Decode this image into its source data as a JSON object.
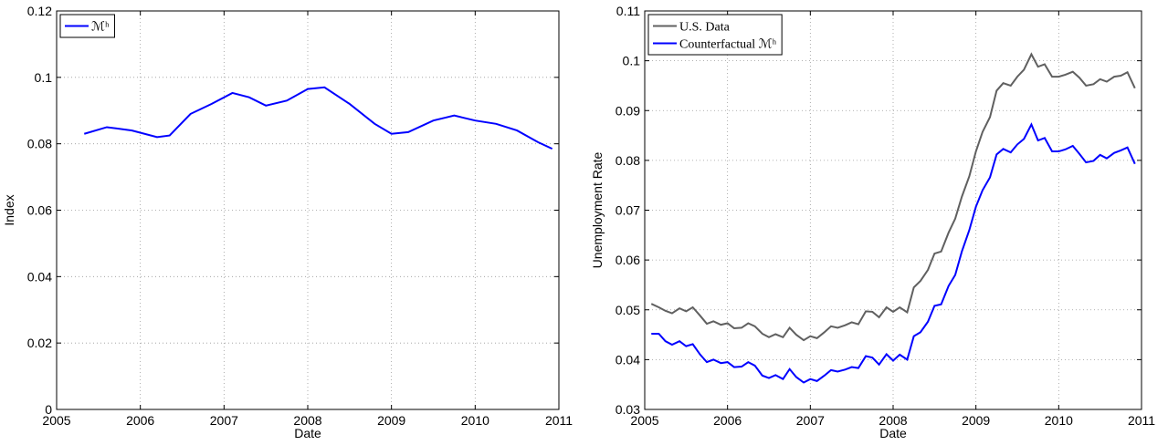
{
  "chart_data": [
    {
      "type": "line",
      "xlabel": "Date",
      "ylabel": "Index",
      "x": [
        2005.33,
        2005.6,
        2005.9,
        2006.2,
        2006.35,
        2006.6,
        2006.85,
        2007.1,
        2007.3,
        2007.5,
        2007.75,
        2008.0,
        2008.2,
        2008.5,
        2008.8,
        2009.0,
        2009.2,
        2009.5,
        2009.75,
        2010.0,
        2010.25,
        2010.5,
        2010.75,
        2010.92
      ],
      "series": [
        {
          "name": "ℳʰ",
          "color": "#0000ff",
          "values": [
            0.083,
            0.085,
            0.084,
            0.082,
            0.0825,
            0.089,
            0.092,
            0.0953,
            0.094,
            0.0915,
            0.093,
            0.0965,
            0.097,
            0.092,
            0.086,
            0.083,
            0.0835,
            0.087,
            0.0885,
            0.087,
            0.086,
            0.084,
            0.0805,
            0.0785
          ]
        }
      ],
      "xlim": [
        2005,
        2011
      ],
      "ylim": [
        0,
        0.12
      ],
      "xticks": [
        2005,
        2006,
        2007,
        2008,
        2009,
        2010,
        2011
      ],
      "yticks": [
        0,
        0.02,
        0.04,
        0.06,
        0.08,
        0.1,
        0.12
      ],
      "grid": true,
      "legend": "upper left"
    },
    {
      "type": "line",
      "xlabel": "Date",
      "ylabel": "Unemployment Rate",
      "x": [
        2005.08,
        2005.17,
        2005.25,
        2005.33,
        2005.42,
        2005.5,
        2005.58,
        2005.67,
        2005.75,
        2005.83,
        2005.92,
        2006.0,
        2006.08,
        2006.17,
        2006.25,
        2006.33,
        2006.42,
        2006.5,
        2006.58,
        2006.67,
        2006.75,
        2006.83,
        2006.92,
        2007.0,
        2007.08,
        2007.17,
        2007.25,
        2007.33,
        2007.42,
        2007.5,
        2007.58,
        2007.67,
        2007.75,
        2007.83,
        2007.92,
        2008.0,
        2008.08,
        2008.17,
        2008.25,
        2008.33,
        2008.42,
        2008.5,
        2008.58,
        2008.67,
        2008.75,
        2008.83,
        2008.92,
        2009.0,
        2009.08,
        2009.17,
        2009.25,
        2009.33,
        2009.42,
        2009.5,
        2009.58,
        2009.67,
        2009.75,
        2009.83,
        2009.92,
        2010.0,
        2010.08,
        2010.17,
        2010.25,
        2010.33,
        2010.42,
        2010.5,
        2010.58,
        2010.67,
        2010.75,
        2010.83,
        2010.92
      ],
      "series": [
        {
          "name": "U.S. Data",
          "color": "#606060",
          "values": [
            0.0512,
            0.0505,
            0.0498,
            0.0493,
            0.0503,
            0.0497,
            0.0505,
            0.0488,
            0.0472,
            0.0477,
            0.047,
            0.0473,
            0.0463,
            0.0464,
            0.0473,
            0.0467,
            0.0452,
            0.0445,
            0.0451,
            0.0445,
            0.0464,
            0.045,
            0.0439,
            0.0447,
            0.0443,
            0.0455,
            0.0467,
            0.0464,
            0.0469,
            0.0475,
            0.0471,
            0.0497,
            0.0496,
            0.0485,
            0.0505,
            0.0496,
            0.0505,
            0.0495,
            0.0545,
            0.0558,
            0.058,
            0.0613,
            0.0617,
            0.0655,
            0.0683,
            0.0727,
            0.0768,
            0.0818,
            0.0857,
            0.0887,
            0.094,
            0.0955,
            0.095,
            0.0968,
            0.0982,
            0.1013,
            0.0988,
            0.0993,
            0.0968,
            0.0968,
            0.0972,
            0.0978,
            0.0966,
            0.095,
            0.0953,
            0.0963,
            0.0958,
            0.0968,
            0.097,
            0.0977,
            0.0945
          ]
        },
        {
          "name": "Counterfactual ℳʰ",
          "color": "#0000ff",
          "values": [
            0.0452,
            0.0452,
            0.0437,
            0.043,
            0.0437,
            0.0427,
            0.0431,
            0.041,
            0.0395,
            0.04,
            0.0393,
            0.0395,
            0.0385,
            0.0386,
            0.0395,
            0.0388,
            0.0368,
            0.0363,
            0.0369,
            0.0361,
            0.0381,
            0.0365,
            0.0354,
            0.0361,
            0.0357,
            0.0368,
            0.0379,
            0.0376,
            0.038,
            0.0385,
            0.0383,
            0.0407,
            0.0404,
            0.039,
            0.0411,
            0.0398,
            0.041,
            0.04,
            0.0447,
            0.0455,
            0.0476,
            0.0508,
            0.0511,
            0.0548,
            0.057,
            0.0617,
            0.066,
            0.0707,
            0.074,
            0.0766,
            0.0812,
            0.0823,
            0.0816,
            0.0832,
            0.0843,
            0.0872,
            0.084,
            0.0845,
            0.0818,
            0.0818,
            0.0822,
            0.0829,
            0.0813,
            0.0796,
            0.0799,
            0.0811,
            0.0804,
            0.0815,
            0.082,
            0.0826,
            0.0793
          ]
        }
      ],
      "xlim": [
        2005,
        2011
      ],
      "ylim": [
        0.03,
        0.11
      ],
      "xticks": [
        2005,
        2006,
        2007,
        2008,
        2009,
        2010,
        2011
      ],
      "yticks": [
        0.03,
        0.04,
        0.05,
        0.06,
        0.07,
        0.08,
        0.09,
        0.1,
        0.11
      ],
      "grid": true,
      "legend": "upper left"
    }
  ]
}
